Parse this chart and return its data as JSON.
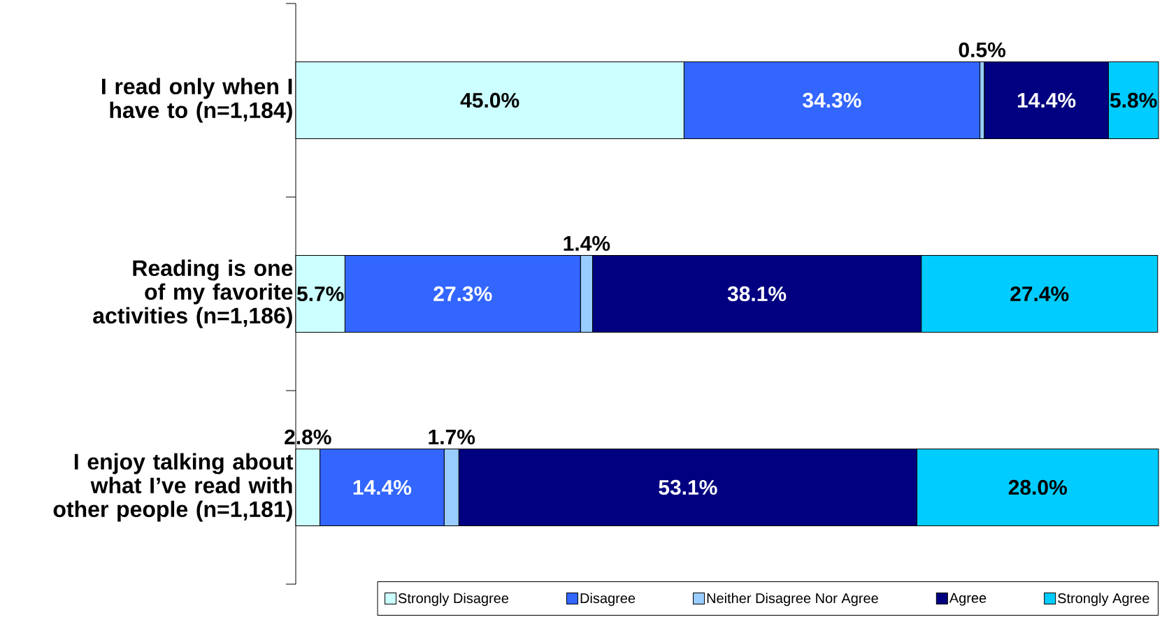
{
  "chart_data": {
    "type": "bar",
    "orientation": "horizontal",
    "stacked": true,
    "legend": "bottom",
    "categories": [
      "I read only when I have to (n=1,184)",
      "Reading is one of my favorite activities (n=1,186)",
      "I enjoy talking about what I’ve read with other people (n=1,181)"
    ],
    "series": [
      {
        "name": "Strongly Disagree",
        "color": "#ccffff",
        "values": [
          45.0,
          5.7,
          2.8
        ],
        "value_labels": [
          "45.0%",
          "5.7%",
          "2.8%"
        ]
      },
      {
        "name": "Disagree",
        "color": "#3366ff",
        "values": [
          34.3,
          27.3,
          14.4
        ],
        "value_labels": [
          "34.3%",
          "27.3%",
          "14.4%"
        ]
      },
      {
        "name": "Neither Disagree Nor Agree",
        "color": "#99ccff",
        "values": [
          0.5,
          1.4,
          1.7
        ],
        "value_labels": [
          "0.5%",
          "1.4%",
          "1.7%"
        ]
      },
      {
        "name": "Agree",
        "color": "#000080",
        "values": [
          14.4,
          38.1,
          53.1
        ],
        "value_labels": [
          "14.4%",
          "38.1%",
          "53.1%"
        ]
      },
      {
        "name": "Strongly Agree",
        "color": "#00ccff",
        "values": [
          5.8,
          27.4,
          28.0
        ],
        "value_labels": [
          "5.8%",
          "27.4%",
          "28.0%"
        ]
      }
    ]
  }
}
